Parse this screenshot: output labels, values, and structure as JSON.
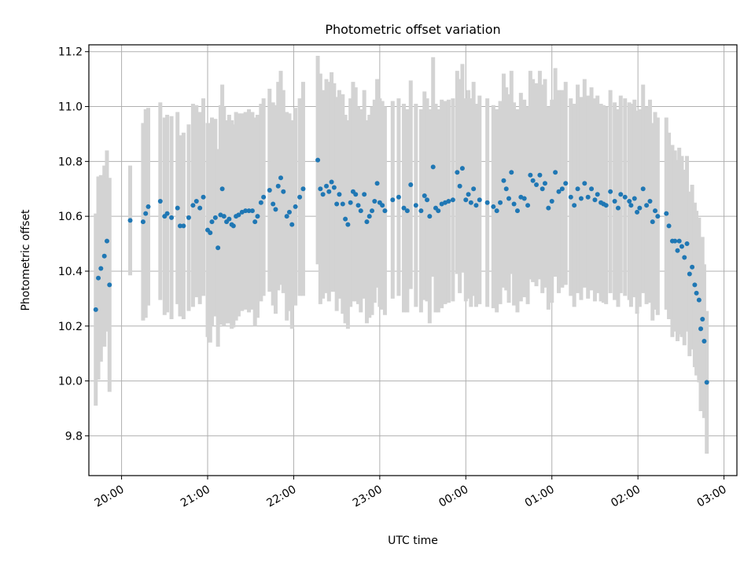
{
  "chart_data": {
    "type": "scatter",
    "title": "Photometric offset variation",
    "xlabel": "UTC time",
    "ylabel": "Photometric offset",
    "x_unit": "hours",
    "xlim": [
      19.62,
      27.15
    ],
    "ylim": [
      9.655,
      11.225
    ],
    "xticks": [
      {
        "value": 20,
        "label": "20:00"
      },
      {
        "value": 21,
        "label": "21:00"
      },
      {
        "value": 22,
        "label": "22:00"
      },
      {
        "value": 23,
        "label": "23:00"
      },
      {
        "value": 24,
        "label": "00:00"
      },
      {
        "value": 25,
        "label": "01:00"
      },
      {
        "value": 26,
        "label": "02:00"
      },
      {
        "value": 27,
        "label": "03:00"
      }
    ],
    "yticks": [
      {
        "value": 9.8,
        "label": "9.8"
      },
      {
        "value": 10.0,
        "label": "10.0"
      },
      {
        "value": 10.2,
        "label": "10.2"
      },
      {
        "value": 10.4,
        "label": "10.4"
      },
      {
        "value": 10.6,
        "label": "10.6"
      },
      {
        "value": 10.8,
        "label": "10.8"
      },
      {
        "value": 11.0,
        "label": "11.0"
      },
      {
        "value": 11.2,
        "label": "11.2"
      }
    ],
    "grid": true,
    "colors": {
      "points": "#1f77b4",
      "errorbars": "#d3d3d3",
      "grid": "#b0b0b0"
    },
    "series": [
      {
        "points": [
          [
            19.7,
            10.26,
            0.35
          ],
          [
            19.73,
            10.375,
            0.37
          ],
          [
            19.76,
            10.41,
            0.34
          ],
          [
            19.8,
            10.455,
            0.33
          ],
          [
            19.83,
            10.51,
            0.33
          ],
          [
            19.86,
            10.35,
            0.39
          ],
          [
            20.1,
            10.585,
            0.2
          ],
          [
            20.25,
            10.58,
            0.36
          ],
          [
            20.28,
            10.61,
            0.38
          ],
          [
            20.31,
            10.635,
            0.36
          ],
          [
            20.45,
            10.655,
            0.36
          ],
          [
            20.5,
            10.6,
            0.36
          ],
          [
            20.53,
            10.61,
            0.36
          ],
          [
            20.58,
            10.595,
            0.37
          ],
          [
            20.65,
            10.63,
            0.35
          ],
          [
            20.68,
            10.565,
            0.33
          ],
          [
            20.72,
            10.565,
            0.34
          ],
          [
            20.78,
            10.595,
            0.34
          ],
          [
            20.83,
            10.64,
            0.37
          ],
          [
            20.87,
            10.655,
            0.35
          ],
          [
            20.91,
            10.63,
            0.35
          ],
          [
            20.95,
            10.67,
            0.36
          ],
          [
            21.0,
            10.55,
            0.39
          ],
          [
            21.03,
            10.54,
            0.4
          ],
          [
            21.05,
            10.58,
            0.38
          ],
          [
            21.09,
            10.595,
            0.36
          ],
          [
            21.12,
            10.485,
            0.36
          ],
          [
            21.15,
            10.605,
            0.4
          ],
          [
            21.17,
            10.7,
            0.38
          ],
          [
            21.19,
            10.6,
            0.4
          ],
          [
            21.22,
            10.58,
            0.37
          ],
          [
            21.25,
            10.59,
            0.38
          ],
          [
            21.28,
            10.57,
            0.38
          ],
          [
            21.3,
            10.565,
            0.37
          ],
          [
            21.33,
            10.6,
            0.38
          ],
          [
            21.36,
            10.605,
            0.37
          ],
          [
            21.4,
            10.615,
            0.36
          ],
          [
            21.44,
            10.62,
            0.36
          ],
          [
            21.48,
            10.62,
            0.37
          ],
          [
            21.52,
            10.62,
            0.36
          ],
          [
            21.55,
            10.58,
            0.38
          ],
          [
            21.58,
            10.6,
            0.37
          ],
          [
            21.62,
            10.65,
            0.36
          ],
          [
            21.65,
            10.67,
            0.36
          ],
          [
            21.72,
            10.695,
            0.37
          ],
          [
            21.76,
            10.645,
            0.37
          ],
          [
            21.79,
            10.625,
            0.38
          ],
          [
            21.82,
            10.71,
            0.38
          ],
          [
            21.85,
            10.74,
            0.39
          ],
          [
            21.88,
            10.69,
            0.37
          ],
          [
            21.92,
            10.6,
            0.38
          ],
          [
            21.95,
            10.615,
            0.36
          ],
          [
            21.98,
            10.57,
            0.38
          ],
          [
            22.02,
            10.635,
            0.36
          ],
          [
            22.07,
            10.67,
            0.36
          ],
          [
            22.11,
            10.7,
            0.39
          ],
          [
            22.28,
            10.805,
            0.38
          ],
          [
            22.31,
            10.7,
            0.42
          ],
          [
            22.34,
            10.68,
            0.38
          ],
          [
            22.38,
            10.71,
            0.39
          ],
          [
            22.41,
            10.69,
            0.4
          ],
          [
            22.44,
            10.725,
            0.4
          ],
          [
            22.47,
            10.705,
            0.38
          ],
          [
            22.5,
            10.645,
            0.39
          ],
          [
            22.53,
            10.68,
            0.38
          ],
          [
            22.57,
            10.645,
            0.4
          ],
          [
            22.6,
            10.59,
            0.38
          ],
          [
            22.63,
            10.57,
            0.38
          ],
          [
            22.66,
            10.65,
            0.38
          ],
          [
            22.69,
            10.69,
            0.4
          ],
          [
            22.72,
            10.68,
            0.39
          ],
          [
            22.75,
            10.64,
            0.36
          ],
          [
            22.78,
            10.62,
            0.37
          ],
          [
            22.82,
            10.68,
            0.38
          ],
          [
            22.85,
            10.58,
            0.37
          ],
          [
            22.88,
            10.6,
            0.37
          ],
          [
            22.91,
            10.62,
            0.38
          ],
          [
            22.94,
            10.655,
            0.37
          ],
          [
            22.97,
            10.72,
            0.38
          ],
          [
            23.0,
            10.65,
            0.38
          ],
          [
            23.03,
            10.64,
            0.38
          ],
          [
            23.06,
            10.62,
            0.38
          ],
          [
            23.15,
            10.66,
            0.36
          ],
          [
            23.22,
            10.67,
            0.36
          ],
          [
            23.28,
            10.63,
            0.38
          ],
          [
            23.32,
            10.62,
            0.37
          ],
          [
            23.36,
            10.715,
            0.38
          ],
          [
            23.42,
            10.64,
            0.37
          ],
          [
            23.48,
            10.62,
            0.37
          ],
          [
            23.52,
            10.675,
            0.38
          ],
          [
            23.55,
            10.66,
            0.37
          ],
          [
            23.58,
            10.6,
            0.39
          ],
          [
            23.62,
            10.78,
            0.4
          ],
          [
            23.65,
            10.63,
            0.38
          ],
          [
            23.68,
            10.62,
            0.37
          ],
          [
            23.72,
            10.645,
            0.38
          ],
          [
            23.76,
            10.65,
            0.37
          ],
          [
            23.8,
            10.655,
            0.37
          ],
          [
            23.85,
            10.66,
            0.37
          ],
          [
            23.9,
            10.76,
            0.37
          ],
          [
            23.93,
            10.71,
            0.39
          ],
          [
            23.96,
            10.775,
            0.38
          ],
          [
            24.0,
            10.66,
            0.37
          ],
          [
            24.03,
            10.68,
            0.38
          ],
          [
            24.06,
            10.65,
            0.38
          ],
          [
            24.09,
            10.7,
            0.39
          ],
          [
            24.12,
            10.64,
            0.37
          ],
          [
            24.16,
            10.66,
            0.38
          ],
          [
            24.25,
            10.65,
            0.38
          ],
          [
            24.32,
            10.635,
            0.37
          ],
          [
            24.36,
            10.62,
            0.37
          ],
          [
            24.4,
            10.65,
            0.37
          ],
          [
            24.44,
            10.73,
            0.39
          ],
          [
            24.47,
            10.7,
            0.37
          ],
          [
            24.5,
            10.665,
            0.38
          ],
          [
            24.53,
            10.76,
            0.37
          ],
          [
            24.56,
            10.645,
            0.37
          ],
          [
            24.6,
            10.62,
            0.37
          ],
          [
            24.64,
            10.67,
            0.38
          ],
          [
            24.68,
            10.665,
            0.36
          ],
          [
            24.72,
            10.64,
            0.36
          ],
          [
            24.75,
            10.75,
            0.38
          ],
          [
            24.78,
            10.73,
            0.37
          ],
          [
            24.82,
            10.715,
            0.37
          ],
          [
            24.86,
            10.75,
            0.38
          ],
          [
            24.89,
            10.7,
            0.38
          ],
          [
            24.92,
            10.72,
            0.38
          ],
          [
            24.96,
            10.63,
            0.37
          ],
          [
            25.0,
            10.655,
            0.37
          ],
          [
            25.04,
            10.76,
            0.38
          ],
          [
            25.08,
            10.69,
            0.37
          ],
          [
            25.12,
            10.7,
            0.36
          ],
          [
            25.16,
            10.72,
            0.37
          ],
          [
            25.22,
            10.67,
            0.36
          ],
          [
            25.26,
            10.64,
            0.37
          ],
          [
            25.3,
            10.7,
            0.38
          ],
          [
            25.34,
            10.665,
            0.37
          ],
          [
            25.38,
            10.72,
            0.38
          ],
          [
            25.42,
            10.67,
            0.37
          ],
          [
            25.46,
            10.7,
            0.37
          ],
          [
            25.5,
            10.66,
            0.37
          ],
          [
            25.53,
            10.68,
            0.36
          ],
          [
            25.57,
            10.65,
            0.36
          ],
          [
            25.6,
            10.645,
            0.36
          ],
          [
            25.63,
            10.64,
            0.36
          ],
          [
            25.68,
            10.69,
            0.37
          ],
          [
            25.73,
            10.655,
            0.36
          ],
          [
            25.77,
            10.63,
            0.36
          ],
          [
            25.8,
            10.68,
            0.36
          ],
          [
            25.85,
            10.67,
            0.36
          ],
          [
            25.9,
            10.655,
            0.36
          ],
          [
            25.92,
            10.64,
            0.37
          ],
          [
            25.96,
            10.665,
            0.36
          ],
          [
            25.99,
            10.615,
            0.37
          ],
          [
            26.02,
            10.63,
            0.36
          ],
          [
            26.06,
            10.7,
            0.38
          ],
          [
            26.1,
            10.64,
            0.36
          ],
          [
            26.14,
            10.655,
            0.37
          ],
          [
            26.17,
            10.58,
            0.36
          ],
          [
            26.2,
            10.62,
            0.36
          ],
          [
            26.23,
            10.6,
            0.36
          ],
          [
            26.33,
            10.61,
            0.35
          ],
          [
            26.36,
            10.565,
            0.34
          ],
          [
            26.4,
            10.51,
            0.35
          ],
          [
            26.43,
            10.51,
            0.33
          ],
          [
            26.46,
            10.475,
            0.33
          ],
          [
            26.48,
            10.51,
            0.34
          ],
          [
            26.51,
            10.49,
            0.33
          ],
          [
            26.54,
            10.45,
            0.32
          ],
          [
            26.57,
            10.5,
            0.32
          ],
          [
            26.6,
            10.39,
            0.3
          ],
          [
            26.63,
            10.415,
            0.3
          ],
          [
            26.66,
            10.35,
            0.3
          ],
          [
            26.68,
            10.32,
            0.3
          ],
          [
            26.71,
            10.295,
            0.3
          ],
          [
            26.73,
            10.19,
            0.3
          ],
          [
            26.75,
            10.225,
            0.3
          ],
          [
            26.77,
            10.145,
            0.28
          ],
          [
            26.8,
            9.995,
            0.26
          ]
        ]
      }
    ]
  }
}
